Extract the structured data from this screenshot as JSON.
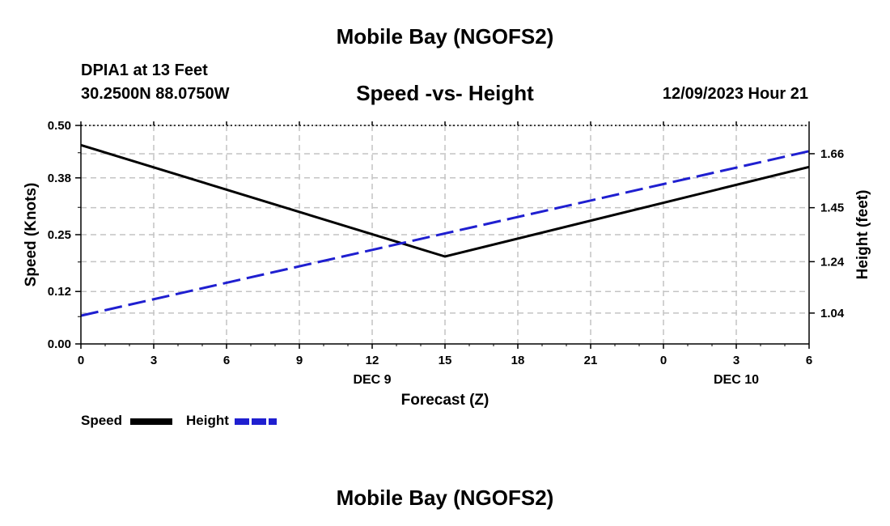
{
  "header": {
    "title": "Mobile Bay (NGOFS2)",
    "station": "DPIA1 at 13 Feet",
    "coords": "30.2500N  88.0750W",
    "subtitle": "Speed -vs- Height",
    "datetime": "12/09/2023 Hour 21"
  },
  "footer": {
    "title": "Mobile Bay (NGOFS2)"
  },
  "legend": {
    "items": [
      {
        "label": "Speed",
        "color": "#000000",
        "style": "solid"
      },
      {
        "label": "Height",
        "color": "#1f1fd0",
        "style": "dashed"
      }
    ]
  },
  "chart_data": {
    "type": "line",
    "title": "Speed -vs- Height",
    "xlabel": "Forecast (Z)",
    "ylabel_left": "Speed (Knots)",
    "ylabel_right": "Height (feet)",
    "x_ticks": [
      "0",
      "3",
      "6",
      "9",
      "12",
      "15",
      "18",
      "21",
      "0",
      "3",
      "6"
    ],
    "x_day_labels": [
      {
        "tick_index": 4,
        "label": "DEC 9"
      },
      {
        "tick_index": 9,
        "label": "DEC 10"
      }
    ],
    "x_hours_since_start": [
      0,
      3,
      6,
      9,
      12,
      15,
      18,
      21,
      24,
      27,
      30
    ],
    "y_left_ticks": [
      "0.00",
      "0.12",
      "0.25",
      "0.38",
      "0.50"
    ],
    "y_left_lim": [
      0,
      0.5
    ],
    "y_right_ticks": [
      "1.04",
      "1.24",
      "1.45",
      "1.66"
    ],
    "y_right_lim": [
      0.92,
      1.77
    ],
    "grid": true,
    "legend_position": "bottom-left",
    "series": [
      {
        "name": "Speed",
        "axis": "left",
        "color": "#000000",
        "dash": "solid",
        "x": [
          0,
          15,
          30
        ],
        "values": [
          0.455,
          0.2,
          0.405
        ]
      },
      {
        "name": "Height",
        "axis": "right",
        "color": "#1f1fd0",
        "dash": "dashed",
        "x": [
          0,
          30
        ],
        "values": [
          1.03,
          1.67
        ]
      }
    ]
  }
}
